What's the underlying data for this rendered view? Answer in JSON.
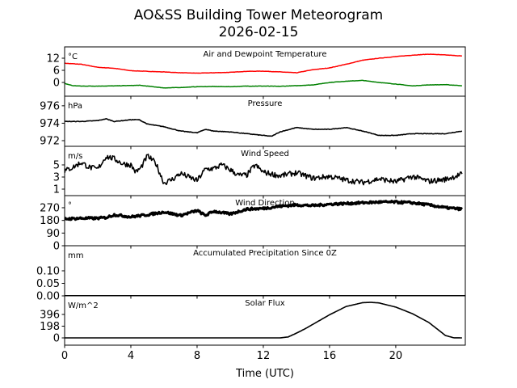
{
  "chart_data": [
    {
      "type": "line",
      "title": "AO&SS Building Tower Meteorogram",
      "subtitle": "2026-02-15",
      "xlabel": "Time (UTC)",
      "xlim": [
        0,
        24.2
      ],
      "xticks": [
        "0",
        "4",
        "8",
        "12",
        "16",
        "20"
      ],
      "xtick_values": [
        0,
        4,
        8,
        12,
        16,
        20
      ],
      "panels": [
        {
          "title": "Air and Dewpoint Temperature",
          "unit": "°C",
          "ylim": [
            -6.8,
            17.6
          ],
          "yticks": [
            "12",
            "6",
            "0"
          ],
          "ytick_values": [
            12,
            6,
            0
          ],
          "series": [
            {
              "name": "Air Temperature",
              "color": "#ff0000",
              "x": [
                0,
                1,
                2,
                3,
                4,
                5,
                6,
                7,
                8,
                9,
                10,
                11,
                12,
                13,
                14,
                15,
                16,
                17,
                18,
                19,
                20,
                21,
                22,
                23,
                24
              ],
              "y": [
                9.5,
                9,
                7.5,
                7,
                5.8,
                5.5,
                5.2,
                4.8,
                4.6,
                4.8,
                5,
                5.5,
                5.6,
                5.2,
                4.8,
                6.3,
                7.2,
                9,
                11,
                12,
                12.8,
                13.5,
                14,
                13.6,
                13.1
              ]
            },
            {
              "name": "Dewpoint",
              "color": "#008000",
              "x": [
                0,
                0.5,
                1,
                2,
                3,
                4,
                4.5,
                5,
                6,
                7,
                8,
                9,
                10,
                11,
                12,
                13,
                14,
                15,
                16,
                17,
                18,
                19,
                20,
                21,
                22,
                23,
                24
              ],
              "y": [
                -0.5,
                -1.6,
                -1.8,
                -1.8,
                -1.7,
                -1.5,
                -1.4,
                -1.8,
                -2.7,
                -2.5,
                -2.1,
                -2,
                -2.1,
                -1.8,
                -1.8,
                -1.9,
                -1.6,
                -1.2,
                0,
                0.6,
                1,
                0,
                -0.8,
                -1.7,
                -1.2,
                -1.1,
                -1.6
              ]
            }
          ]
        },
        {
          "title": "Pressure",
          "unit": "hPa",
          "ylim": [
            971.35,
            977.1
          ],
          "yticks": [
            "976",
            "974",
            "972"
          ],
          "ytick_values": [
            976,
            974,
            972
          ],
          "series": [
            {
              "name": "Pressure",
              "color": "#000000",
              "x": [
                0,
                1,
                2,
                2.5,
                3,
                4,
                4.5,
                5,
                6,
                7,
                8,
                8.5,
                9,
                10,
                11,
                12,
                12.5,
                13,
                14,
                15,
                16,
                17,
                18,
                19,
                20,
                21,
                22,
                23,
                24
              ],
              "y": [
                974.2,
                974.2,
                974.3,
                974.5,
                974.2,
                974.4,
                974.4,
                973.9,
                973.6,
                973.1,
                972.9,
                973.3,
                973.1,
                973,
                972.8,
                972.6,
                972.5,
                973,
                973.5,
                973.3,
                973.3,
                973.5,
                973.1,
                972.6,
                972.6,
                972.8,
                972.8,
                972.8,
                973.1
              ]
            }
          ]
        },
        {
          "title": "Wind Speed",
          "unit": "m/s",
          "ylim": [
            -0.07,
            8.07
          ],
          "yticks": [
            "5",
            "3",
            "1"
          ],
          "ytick_values": [
            5,
            3,
            1
          ],
          "series": [
            {
              "name": "Wind Speed",
              "color": "#000000",
              "x": [
                0,
                0.5,
                1,
                1.5,
                2,
                2.5,
                3,
                3.5,
                4,
                4.3,
                4.6,
                5,
                5.5,
                6,
                6.5,
                7,
                8,
                8.5,
                9,
                9.5,
                10,
                10.5,
                11,
                11.5,
                12,
                13,
                14,
                15,
                16,
                17,
                18,
                19,
                20,
                21,
                22,
                23,
                24
              ],
              "y": [
                4,
                4.6,
                5.4,
                4.6,
                4.3,
                6.4,
                6,
                5.2,
                5,
                3.8,
                4.5,
                6.5,
                5.3,
                2,
                2.6,
                3.6,
                2.4,
                4.3,
                4.4,
                5,
                4.2,
                3.3,
                3.3,
                5,
                3.8,
                3.2,
                3.7,
                2.8,
                3.1,
                2.5,
                2.1,
                2.7,
                2.2,
                3.1,
                2.3,
                2.6,
                3.5
              ]
            }
          ]
        },
        {
          "title": "Wind Direction",
          "unit": "°",
          "ylim": [
            0,
            356
          ],
          "yticks": [
            "270",
            "180",
            "90",
            "0"
          ],
          "ytick_values": [
            270,
            180,
            90,
            0
          ],
          "series": [
            {
              "name": "Wind Direction",
              "color": "#000000",
              "x": [
                0,
                1,
                2,
                2.5,
                3,
                4,
                5,
                6,
                7,
                8,
                8.5,
                9,
                10,
                11,
                12,
                13,
                14,
                15,
                16,
                17,
                18,
                19,
                20,
                21,
                22,
                23,
                24
              ],
              "y": [
                190,
                195,
                195,
                200,
                220,
                205,
                220,
                240,
                215,
                250,
                215,
                245,
                225,
                260,
                265,
                280,
                290,
                285,
                295,
                300,
                305,
                310,
                310,
                305,
                290,
                270,
                260
              ]
            }
          ]
        },
        {
          "title": "Accumulated Precipitation Since 0Z",
          "unit": "mm",
          "ylim": [
            0,
            0.2
          ],
          "yticks": [
            "0.10",
            "0.05",
            "0.00"
          ],
          "ytick_values": [
            0.1,
            0.05,
            0
          ],
          "series": [
            {
              "name": "Precipitation",
              "color": "#000000",
              "x": [
                0,
                24.2
              ],
              "y": [
                0,
                0
              ]
            }
          ]
        },
        {
          "title": "Solar Flux",
          "unit": "W/m^2",
          "ylim": [
            -123,
            710
          ],
          "yticks": [
            "396",
            "198",
            "0"
          ],
          "ytick_values": [
            396,
            198,
            0
          ],
          "series": [
            {
              "name": "Solar Flux",
              "color": "#000000",
              "x": [
                0,
                13,
                13.5,
                14,
                14.5,
                15,
                16,
                17,
                18,
                18.5,
                19,
                20,
                21,
                22,
                22.5,
                23,
                23.5,
                24
              ],
              "y": [
                0,
                0,
                15,
                80,
                150,
                230,
                390,
                530,
                595,
                600,
                590,
                520,
                410,
                260,
                150,
                40,
                2,
                0
              ]
            }
          ]
        }
      ]
    }
  ]
}
